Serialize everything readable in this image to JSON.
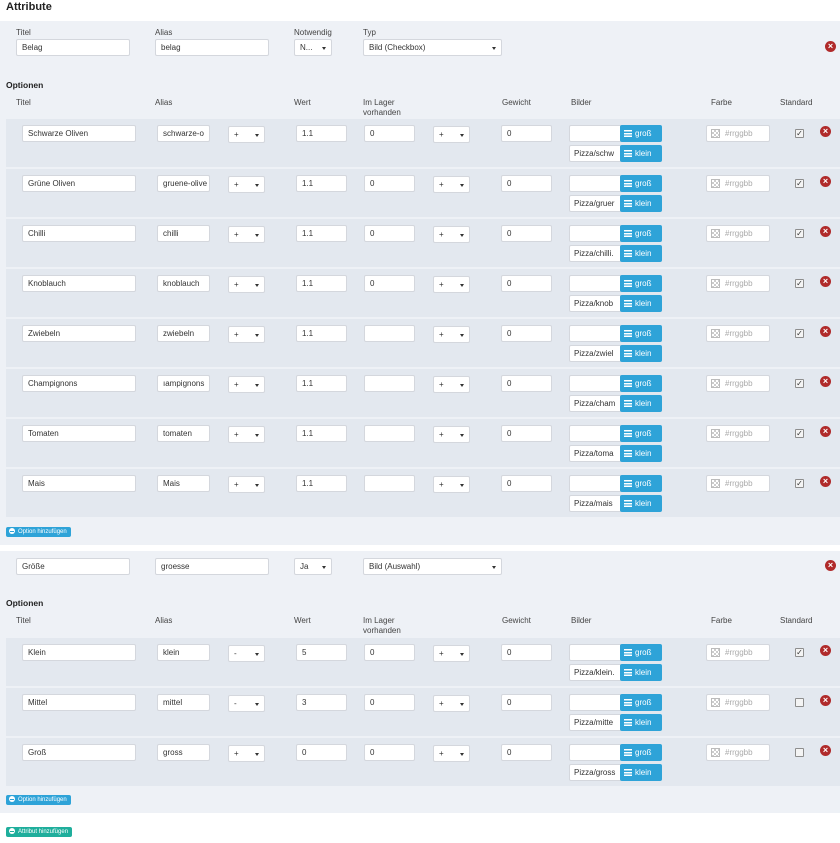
{
  "page_title": "Attribute",
  "labels": {
    "title": "Titel",
    "alias": "Alias",
    "required": "Notwendig",
    "type": "Typ",
    "options": "Optionen",
    "value": "Wert",
    "stock_line1": "Im Lager",
    "stock_line2": "vorhanden",
    "weight": "Gewicht",
    "images": "Bilder",
    "color": "Farbe",
    "default": "Standard",
    "btn_big": "groß",
    "btn_small": "klein",
    "color_placeholder": "#rrggbb",
    "add_option": "Option hinzufügen",
    "add_attribute": "Attribut hinzufügen"
  },
  "colors": {
    "accent": "#2ea3d8",
    "success": "#1fae9c",
    "danger": "#b02a2a"
  },
  "attributes": [
    {
      "title": "Belag",
      "alias": "belag",
      "required": "N...",
      "type": "Bild (Checkbox)",
      "options": [
        {
          "title": "Schwarze Oliven",
          "alias": "schwarze-o",
          "op": "+",
          "value": "1.1",
          "stock": "0",
          "weight_op": "+",
          "weight": "0",
          "img_big": "",
          "img_small": "Pizza/schw",
          "checked": true
        },
        {
          "title": "Grüne Oliven",
          "alias": "gruene-olive",
          "op": "+",
          "value": "1.1",
          "stock": "0",
          "weight_op": "+",
          "weight": "0",
          "img_big": "",
          "img_small": "Pizza/gruer",
          "checked": true
        },
        {
          "title": "Chilli",
          "alias": "chilli",
          "op": "+",
          "value": "1.1",
          "stock": "0",
          "weight_op": "+",
          "weight": "0",
          "img_big": "",
          "img_small": "Pizza/chilli.",
          "checked": true
        },
        {
          "title": "Knoblauch",
          "alias": "knoblauch",
          "op": "+",
          "value": "1.1",
          "stock": "0",
          "weight_op": "+",
          "weight": "0",
          "img_big": "",
          "img_small": "Pizza/knob",
          "checked": true
        },
        {
          "title": "Zwiebeln",
          "alias": "zwiebeln",
          "op": "+",
          "value": "1.1",
          "stock": "",
          "weight_op": "+",
          "weight": "0",
          "img_big": "",
          "img_small": "Pizza/zwiel",
          "checked": true
        },
        {
          "title": "Champignons",
          "alias": "ıampignons",
          "op": "+",
          "value": "1.1",
          "stock": "",
          "weight_op": "+",
          "weight": "0",
          "img_big": "",
          "img_small": "Pizza/cham",
          "checked": true
        },
        {
          "title": "Tomaten",
          "alias": "tomaten",
          "op": "+",
          "value": "1.1",
          "stock": "",
          "weight_op": "+",
          "weight": "0",
          "img_big": "",
          "img_small": "Pizza/toma",
          "checked": true
        },
        {
          "title": "Mais",
          "alias": "Mais",
          "op": "+",
          "value": "1.1",
          "stock": "",
          "weight_op": "+",
          "weight": "0",
          "img_big": "",
          "img_small": "Pizza/mais",
          "checked": true
        }
      ]
    },
    {
      "title": "Größe",
      "alias": "groesse",
      "required": "Ja",
      "type": "Bild (Auswahl)",
      "options": [
        {
          "title": "Klein",
          "alias": "klein",
          "op": "-",
          "value": "5",
          "stock": "0",
          "weight_op": "+",
          "weight": "0",
          "img_big": "",
          "img_small": "Pizza/klein.",
          "checked": true
        },
        {
          "title": "Mittel",
          "alias": "mittel",
          "op": "-",
          "value": "3",
          "stock": "0",
          "weight_op": "+",
          "weight": "0",
          "img_big": "",
          "img_small": "Pizza/mitte",
          "checked": false
        },
        {
          "title": "Groß",
          "alias": "gross",
          "op": "+",
          "value": "0",
          "stock": "0",
          "weight_op": "+",
          "weight": "0",
          "img_big": "",
          "img_small": "Pizza/gross",
          "checked": false
        }
      ]
    }
  ]
}
